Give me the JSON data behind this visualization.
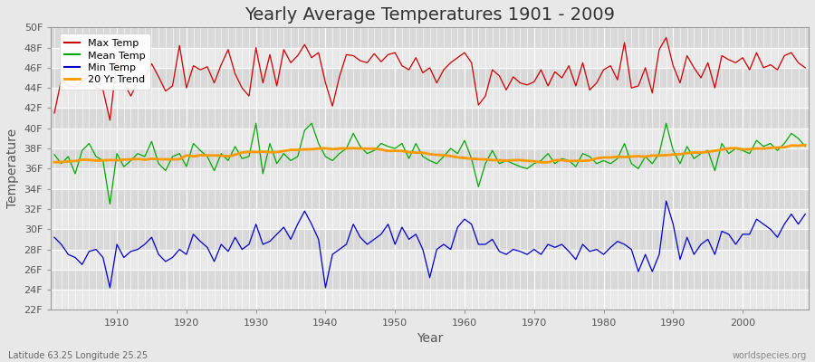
{
  "title": "Yearly Average Temperatures 1901 - 2009",
  "xlabel": "Year",
  "ylabel": "Temperature",
  "footnote_left": "Latitude 63.25 Longitude 25.25",
  "footnote_right": "worldspecies.org",
  "years": [
    1901,
    1902,
    1903,
    1904,
    1905,
    1906,
    1907,
    1908,
    1909,
    1910,
    1911,
    1912,
    1913,
    1914,
    1915,
    1916,
    1917,
    1918,
    1919,
    1920,
    1921,
    1922,
    1923,
    1924,
    1925,
    1926,
    1927,
    1928,
    1929,
    1930,
    1931,
    1932,
    1933,
    1934,
    1935,
    1936,
    1937,
    1938,
    1939,
    1940,
    1941,
    1942,
    1943,
    1944,
    1945,
    1946,
    1947,
    1948,
    1949,
    1950,
    1951,
    1952,
    1953,
    1954,
    1955,
    1956,
    1957,
    1958,
    1959,
    1960,
    1961,
    1962,
    1963,
    1964,
    1965,
    1966,
    1967,
    1968,
    1969,
    1970,
    1971,
    1972,
    1973,
    1974,
    1975,
    1976,
    1977,
    1978,
    1979,
    1980,
    1981,
    1982,
    1983,
    1984,
    1985,
    1986,
    1987,
    1988,
    1989,
    1990,
    1991,
    1992,
    1993,
    1994,
    1995,
    1996,
    1997,
    1998,
    1999,
    2000,
    2001,
    2002,
    2003,
    2004,
    2005,
    2006,
    2007,
    2008,
    2009
  ],
  "max_temp": [
    41.5,
    44.8,
    44.2,
    44.1,
    44.6,
    45.2,
    44.0,
    43.8,
    40.8,
    46.8,
    44.5,
    43.2,
    44.6,
    44.9,
    46.4,
    45.1,
    43.7,
    44.2,
    48.2,
    44.0,
    46.2,
    45.8,
    46.1,
    44.5,
    46.3,
    47.8,
    45.4,
    44.0,
    43.2,
    48.0,
    44.5,
    47.3,
    44.2,
    47.8,
    46.5,
    47.2,
    48.3,
    47.0,
    47.5,
    44.5,
    42.2,
    45.1,
    47.3,
    47.2,
    46.7,
    46.5,
    47.4,
    46.6,
    47.3,
    47.5,
    46.2,
    45.8,
    47.0,
    45.5,
    46.0,
    44.5,
    45.8,
    46.5,
    47.0,
    47.5,
    46.5,
    42.3,
    43.2,
    45.8,
    45.2,
    43.8,
    45.1,
    44.5,
    44.3,
    44.6,
    45.8,
    44.2,
    45.6,
    45.0,
    46.2,
    44.2,
    46.5,
    43.8,
    44.5,
    45.8,
    46.2,
    44.8,
    48.5,
    44.0,
    44.2,
    46.0,
    43.5,
    47.8,
    49.0,
    46.2,
    44.5,
    47.2,
    46.0,
    45.0,
    46.5,
    44.0,
    47.2,
    46.8,
    46.5,
    47.0,
    45.8,
    47.5,
    46.0,
    46.3,
    45.8,
    47.2,
    47.5,
    46.5,
    46.0
  ],
  "mean_temp": [
    37.4,
    36.5,
    37.2,
    35.5,
    37.8,
    38.5,
    37.2,
    36.8,
    32.5,
    37.5,
    36.2,
    36.8,
    37.5,
    37.2,
    38.7,
    36.5,
    35.8,
    37.2,
    37.5,
    36.2,
    38.5,
    37.8,
    37.2,
    35.8,
    37.5,
    36.8,
    38.2,
    37.0,
    37.2,
    40.5,
    35.5,
    38.5,
    36.5,
    37.5,
    36.8,
    37.2,
    39.8,
    40.5,
    38.5,
    37.2,
    36.8,
    37.5,
    38.0,
    39.5,
    38.2,
    37.5,
    37.8,
    38.5,
    38.2,
    38.0,
    38.5,
    37.0,
    38.5,
    37.2,
    36.8,
    36.5,
    37.2,
    38.0,
    37.5,
    38.8,
    37.0,
    34.2,
    36.5,
    37.8,
    36.5,
    36.8,
    36.5,
    36.2,
    36.0,
    36.5,
    36.8,
    37.5,
    36.5,
    37.0,
    36.8,
    36.2,
    37.5,
    37.2,
    36.5,
    36.8,
    36.5,
    37.0,
    38.5,
    36.5,
    36.0,
    37.2,
    36.5,
    37.5,
    40.5,
    37.8,
    36.5,
    38.2,
    37.0,
    37.5,
    37.8,
    35.8,
    38.5,
    37.5,
    38.0,
    37.8,
    37.5,
    38.8,
    38.2,
    38.5,
    37.8,
    38.5,
    39.5,
    39.0,
    38.2
  ],
  "min_temp": [
    29.2,
    28.5,
    27.5,
    27.2,
    26.5,
    27.8,
    28.0,
    27.2,
    24.2,
    28.5,
    27.2,
    27.8,
    28.0,
    28.5,
    29.2,
    27.5,
    26.8,
    27.2,
    28.0,
    27.5,
    29.5,
    28.8,
    28.2,
    26.8,
    28.5,
    27.8,
    29.2,
    28.0,
    28.5,
    30.5,
    28.5,
    28.8,
    29.5,
    30.2,
    29.0,
    30.5,
    31.8,
    30.5,
    29.0,
    24.2,
    27.5,
    28.0,
    28.5,
    30.5,
    29.2,
    28.5,
    29.0,
    29.5,
    30.5,
    28.5,
    30.2,
    29.0,
    29.5,
    28.0,
    25.2,
    28.0,
    28.5,
    28.0,
    30.2,
    31.0,
    30.5,
    28.5,
    28.5,
    29.0,
    27.8,
    27.5,
    28.0,
    27.8,
    27.5,
    28.0,
    27.5,
    28.5,
    28.2,
    28.5,
    27.8,
    27.0,
    28.5,
    27.8,
    28.0,
    27.5,
    28.2,
    28.8,
    28.5,
    28.0,
    25.8,
    27.5,
    25.8,
    27.5,
    32.8,
    30.5,
    27.0,
    29.2,
    27.5,
    28.5,
    29.0,
    27.5,
    29.8,
    29.5,
    28.5,
    29.5,
    29.5,
    31.0,
    30.5,
    30.0,
    29.2,
    30.5,
    31.5,
    30.5,
    31.5
  ],
  "bg_color": "#e8e8e8",
  "plot_bg_color": "#e0e0e0",
  "stripe_color_light": "#e8e8e8",
  "stripe_color_dark": "#d8d8d8",
  "max_color": "#cc0000",
  "mean_color": "#00aa00",
  "min_color": "#0000cc",
  "trend_color": "#ff9900",
  "grid_color": "#ffffff",
  "ylim_min": 22,
  "ylim_max": 50,
  "yticks": [
    22,
    24,
    26,
    28,
    30,
    32,
    34,
    36,
    38,
    40,
    42,
    44,
    46,
    48,
    50
  ],
  "xticks": [
    1910,
    1920,
    1930,
    1940,
    1950,
    1960,
    1970,
    1980,
    1990,
    2000
  ],
  "title_fontsize": 14,
  "axis_fontsize": 10,
  "tick_fontsize": 8,
  "legend_fontsize": 8
}
